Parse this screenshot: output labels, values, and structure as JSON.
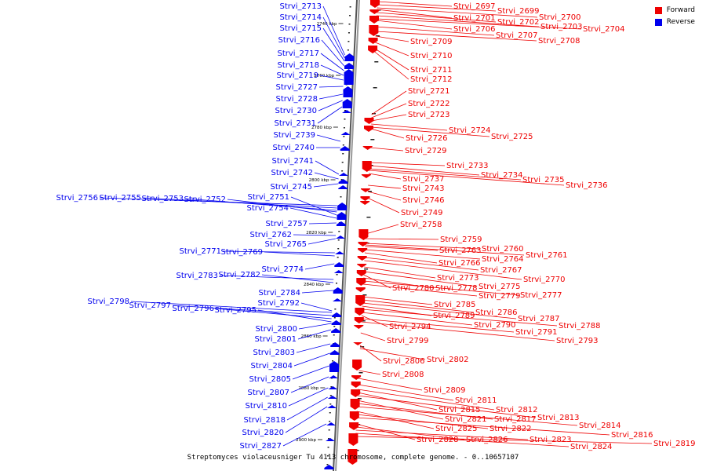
{
  "legend": {
    "forward_label": "Forward",
    "reverse_label": "Reverse",
    "forward_color": "#ee0000",
    "reverse_color": "#0000ee"
  },
  "caption": "Streptomyces violaceusniger Tu 4113 chromosome, complete genome. - 0..10657107",
  "axis": {
    "tick_labels": [
      "2740 kbp",
      "2760 kbp",
      "2780 kbp",
      "2800 kbp",
      "2820 kbp",
      "2840 kbp",
      "2860 kbp",
      "2880 kbp",
      "2900 kbp"
    ]
  },
  "forward_genes": [
    "Strvi_2697",
    "Strvi_2699",
    "Strvi_2700",
    "Strvi_2701",
    "Strvi_2702",
    "Strvi_2703",
    "Strvi_2704",
    "Strvi_2706",
    "Strvi_2707",
    "Strvi_2708",
    "Strvi_2709",
    "Strvi_2710",
    "Strvi_2711",
    "Strvi_2712",
    "Strvi_2721",
    "Strvi_2722",
    "Strvi_2723",
    "Strvi_2724",
    "Strvi_2725",
    "Strvi_2726",
    "Strvi_2729",
    "Strvi_2733",
    "Strvi_2734",
    "Strvi_2735",
    "Strvi_2736",
    "Strvi_2737",
    "Strvi_2743",
    "Strvi_2746",
    "Strvi_2749",
    "Strvi_2758",
    "Strvi_2759",
    "Strvi_2760",
    "Strvi_2763",
    "Strvi_2761",
    "Strvi_2764",
    "Strvi_2766",
    "Strvi_2767",
    "Strvi_2770",
    "Strvi_2773",
    "Strvi_2775",
    "Strvi_2780",
    "Strvi_2778",
    "Strvi_2777",
    "Strvi_2779",
    "Strvi_2785",
    "Strvi_2786",
    "Strvi_2787",
    "Strvi_2789",
    "Strvi_2788",
    "Strvi_2790",
    "Strvi_2794",
    "Strvi_2791",
    "Strvi_2793",
    "Strvi_2799",
    "Strvi_2806",
    "Strvi_2802",
    "Strvi_2808",
    "Strvi_2809",
    "Strvi_2811",
    "Strvi_2812",
    "Strvi_2815",
    "Strvi_2813",
    "Strvi_2821",
    "Strvi_2817",
    "Strvi_2814",
    "Strvi_2825",
    "Strvi_2822",
    "Strvi_2816",
    "Strvi_2828",
    "Strvi_2826",
    "Strvi_2823",
    "Strvi_2824",
    "Strvi_2819"
  ],
  "reverse_genes": [
    "Strvi_2713",
    "Strvi_2714",
    "Strvi_2715",
    "Strvi_2716",
    "Strvi_2717",
    "Strvi_2718",
    "Strvi_2719",
    "Strvi_2727",
    "Strvi_2728",
    "Strvi_2730",
    "Strvi_2731",
    "Strvi_2739",
    "Strvi_2740",
    "Strvi_2741",
    "Strvi_2742",
    "Strvi_2745",
    "Strvi_2756",
    "Strvi_2755",
    "Strvi_2753",
    "Strvi_2752",
    "Strvi_2751",
    "Strvi_2754",
    "Strvi_2757",
    "Strvi_2762",
    "Strvi_2765",
    "Strvi_2771",
    "Strvi_2769",
    "Strvi_2774",
    "Strvi_2783",
    "Strvi_2782",
    "Strvi_2784",
    "Strvi_2798",
    "Strvi_2797",
    "Strvi_2796",
    "Strvi_2792",
    "Strvi_2795",
    "Strvi_2800",
    "Strvi_2801",
    "Strvi_2803",
    "Strvi_2804",
    "Strvi_2805",
    "Strvi_2807",
    "Strvi_2810",
    "Strvi_2818",
    "Strvi_2820",
    "Strvi_2827"
  ]
}
